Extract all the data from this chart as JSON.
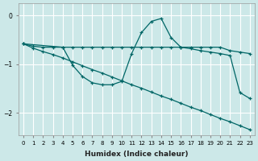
{
  "xlabel": "Humidex (Indice chaleur)",
  "ylabel": "",
  "bg_color": "#cce8e8",
  "grid_color": "#ffffff",
  "line_color": "#006666",
  "xlim": [
    -0.5,
    23.5
  ],
  "ylim": [
    -2.45,
    0.25
  ],
  "yticks": [
    0,
    -1,
    -2
  ],
  "xticks": [
    0,
    1,
    2,
    3,
    4,
    5,
    6,
    7,
    8,
    9,
    10,
    11,
    12,
    13,
    14,
    15,
    16,
    17,
    18,
    19,
    20,
    21,
    22,
    23
  ],
  "line_flat_x": [
    0,
    1,
    2,
    3,
    4,
    5,
    6,
    7,
    8,
    9,
    10,
    11,
    12,
    13,
    14,
    15,
    16,
    17,
    18,
    19,
    20,
    21,
    22,
    23
  ],
  "line_flat_y": [
    -0.58,
    -0.63,
    -0.65,
    -0.65,
    -0.65,
    -0.65,
    -0.65,
    -0.65,
    -0.65,
    -0.65,
    -0.65,
    -0.65,
    -0.65,
    -0.65,
    -0.65,
    -0.65,
    -0.65,
    -0.65,
    -0.65,
    -0.65,
    -0.65,
    -0.72,
    -0.75,
    -0.78
  ],
  "line_diag_x": [
    0,
    1,
    2,
    3,
    4,
    5,
    6,
    7,
    8,
    9,
    10,
    11,
    12,
    13,
    14,
    15,
    16,
    17,
    18,
    19,
    20,
    21,
    22,
    23
  ],
  "line_diag_y": [
    -0.58,
    -0.67,
    -0.74,
    -0.8,
    -0.87,
    -0.95,
    -1.03,
    -1.11,
    -1.18,
    -1.26,
    -1.34,
    -1.42,
    -1.49,
    -1.57,
    -1.65,
    -1.72,
    -1.8,
    -1.88,
    -1.95,
    -2.03,
    -2.11,
    -2.18,
    -2.26,
    -2.34
  ],
  "line_peak_x": [
    0,
    4,
    5,
    6,
    7,
    8,
    9,
    10,
    11,
    12,
    13,
    14,
    15,
    16,
    17,
    18,
    19,
    20,
    21,
    22,
    23
  ],
  "line_peak_y": [
    -0.58,
    -0.65,
    -1.02,
    -1.25,
    -1.38,
    -1.42,
    -1.42,
    -1.35,
    -0.78,
    -0.35,
    -0.12,
    -0.06,
    -0.45,
    -0.65,
    -0.68,
    -0.72,
    -0.75,
    -0.78,
    -0.82,
    -1.58,
    -1.7
  ],
  "marker_size": 3.5,
  "linewidth": 0.9
}
